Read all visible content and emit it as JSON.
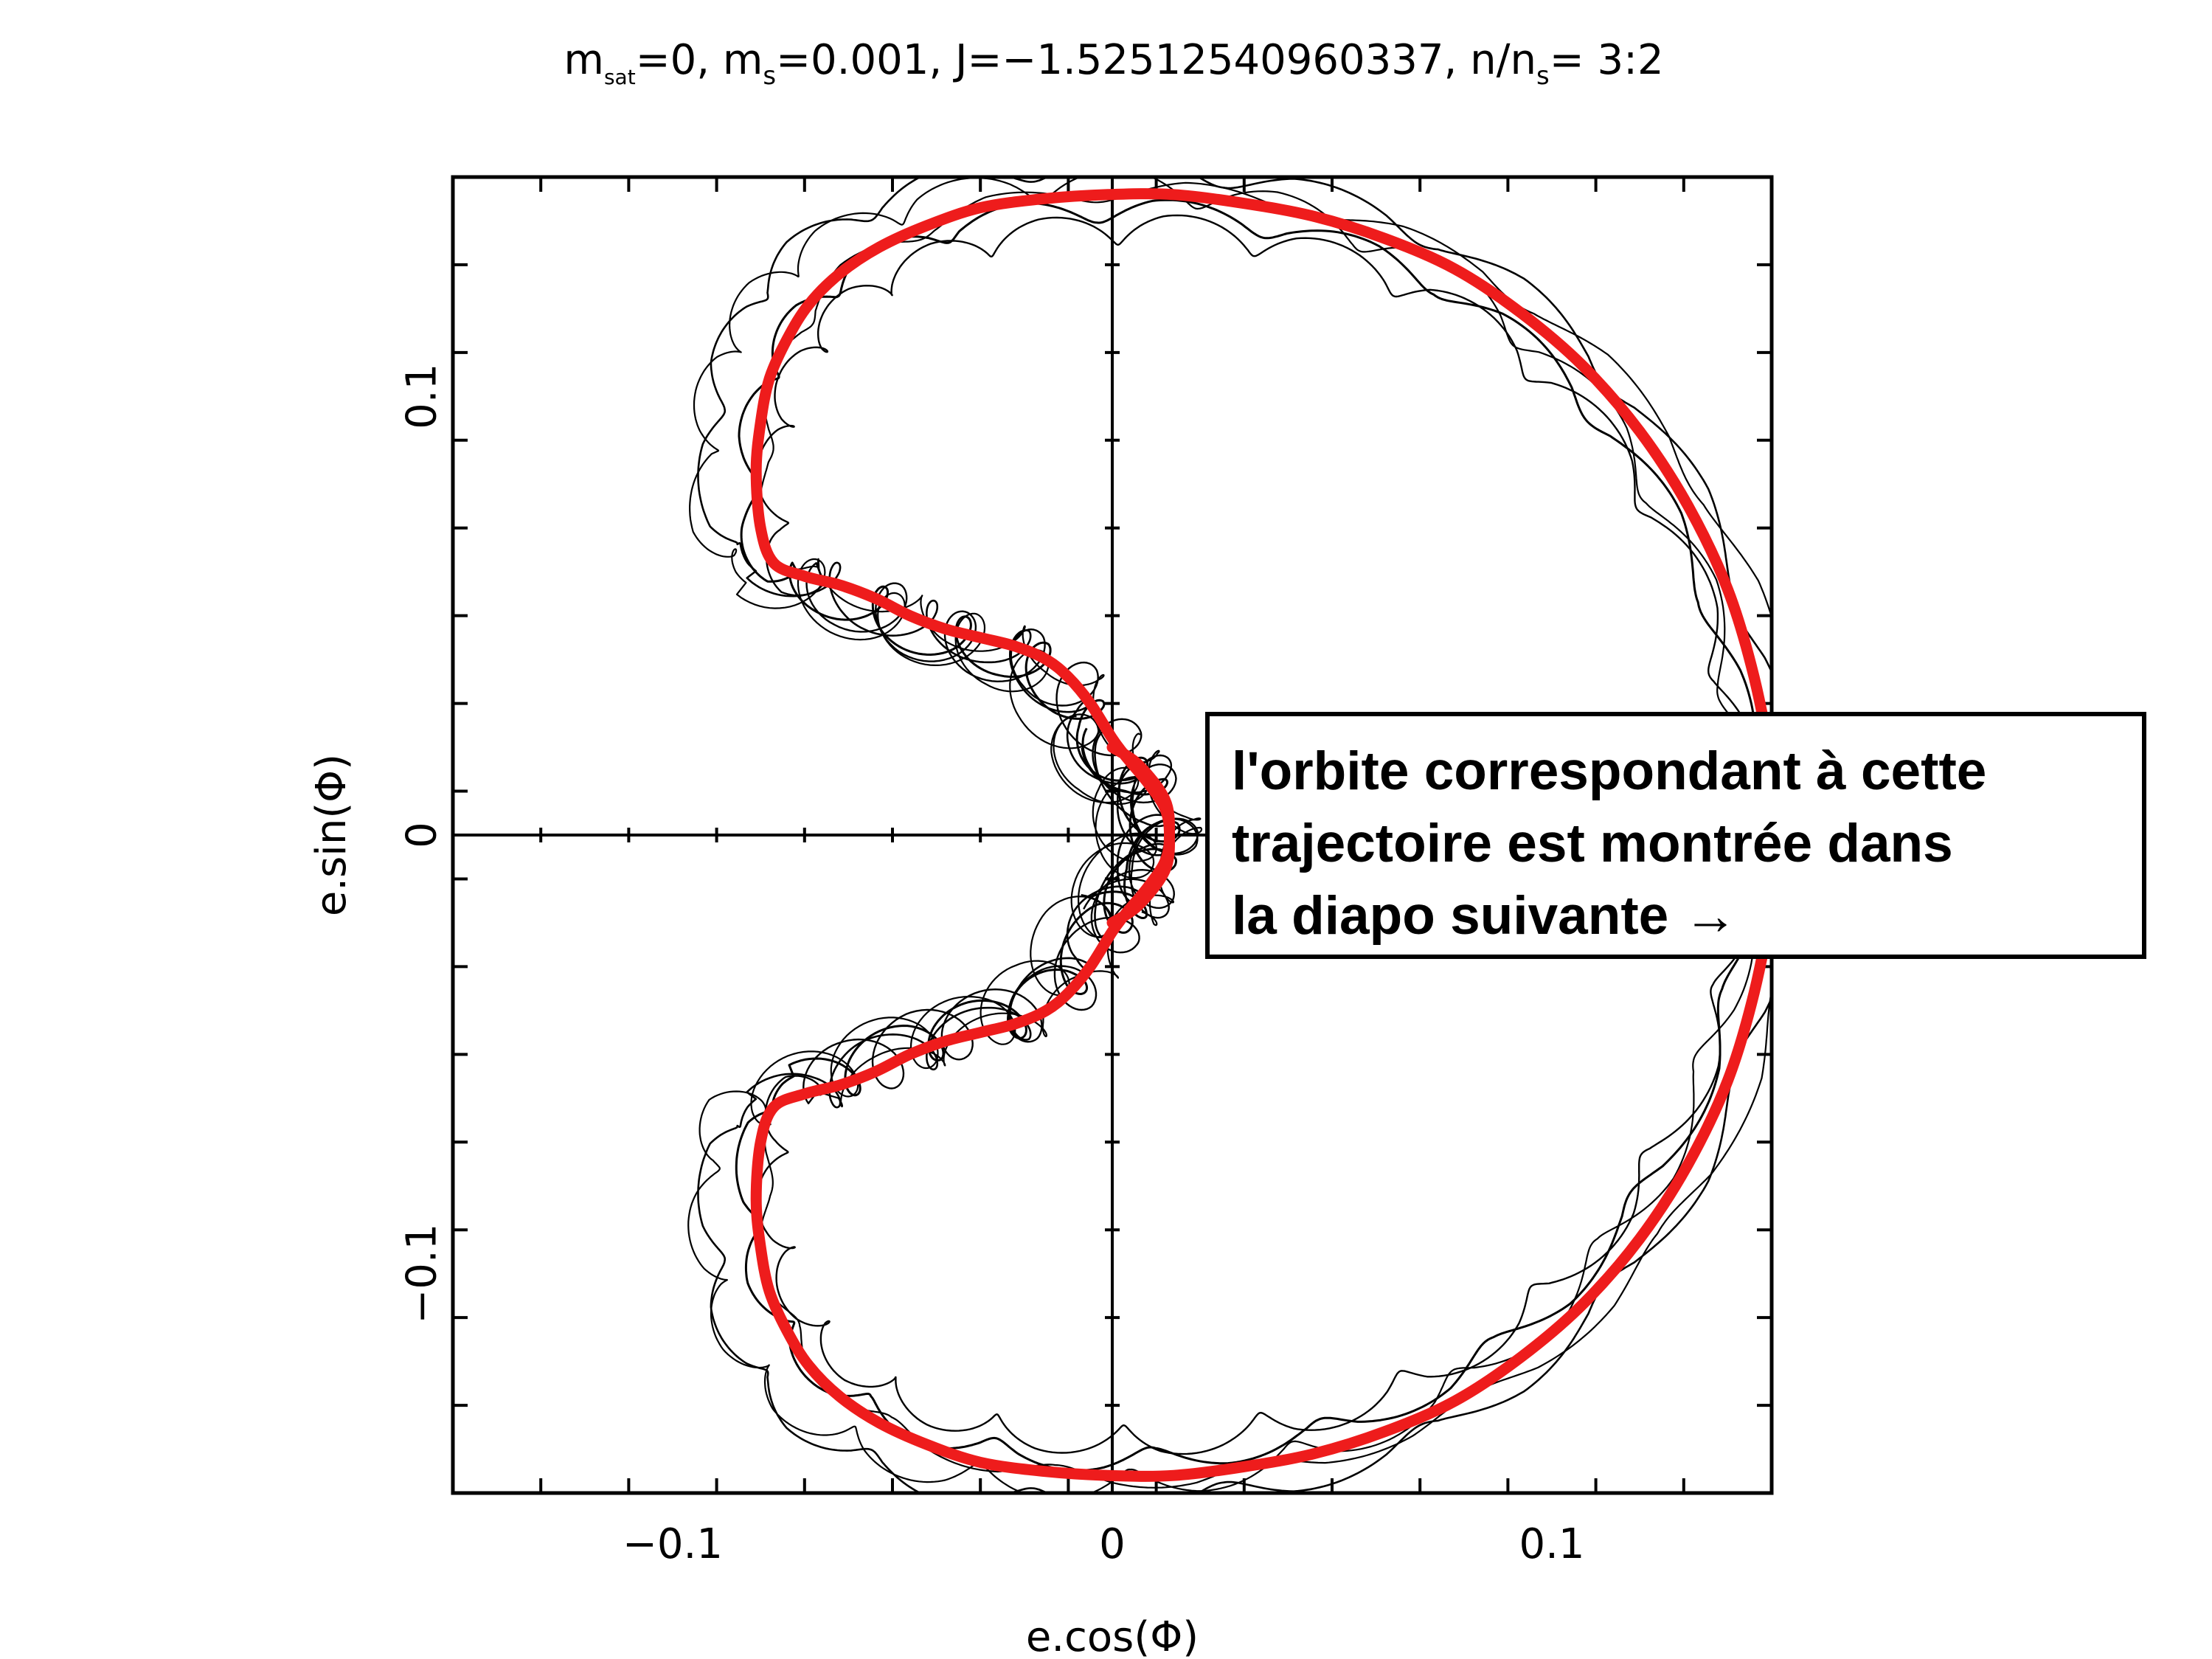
{
  "chart_data": {
    "type": "line",
    "title": {
      "m_sat_sym": "m",
      "m_sat_sub": "sat",
      "m_sat_val": "=0, ",
      "m_s_sym": "m",
      "m_s_sub": "s",
      "m_s_val": "=0.001, J=−1.52512540960337, n/n",
      "ratio_sub": "s",
      "ratio_val": "= 3:2"
    },
    "xlabel": "e.cos(Φ)",
    "ylabel": "e.sin(Φ)",
    "xlim": [
      -0.15,
      0.15
    ],
    "ylim": [
      -0.15,
      0.15
    ],
    "xticks": [
      {
        "value": -0.1,
        "label": "−0.1"
      },
      {
        "value": 0,
        "label": "0"
      },
      {
        "value": 0.1,
        "label": "0.1"
      }
    ],
    "yticks": [
      {
        "value": -0.1,
        "label": "−0.1"
      },
      {
        "value": 0,
        "label": "0"
      },
      {
        "value": 0.1,
        "label": "0.1"
      }
    ],
    "minor_tick_step": 0.02,
    "zero_lines": true,
    "grid": false,
    "series": [
      {
        "style": "thick-red-smooth",
        "color": "#ee1c1c",
        "x": [
          0.0,
          0.006,
          0.012,
          0.013,
          0.012,
          0.008,
          0.003,
          0.0,
          -0.005,
          -0.01,
          -0.015,
          -0.022,
          -0.03,
          -0.038,
          -0.046,
          -0.054,
          -0.062,
          -0.07,
          -0.077,
          -0.08,
          -0.081,
          -0.08,
          -0.078,
          -0.074,
          -0.069,
          -0.062,
          -0.053,
          -0.042,
          -0.03,
          -0.016,
          -0.001,
          0.014,
          0.03,
          0.046,
          0.062,
          0.078,
          0.093,
          0.107,
          0.12,
          0.131,
          0.14,
          0.146,
          0.15,
          0.151,
          0.15,
          0.146,
          0.14,
          0.131,
          0.12,
          0.107,
          0.093,
          0.078,
          0.062,
          0.046,
          0.03,
          0.014,
          -0.001,
          -0.016,
          -0.03,
          -0.042,
          -0.053,
          -0.062,
          -0.069,
          -0.074,
          -0.078,
          -0.08,
          -0.081,
          -0.08,
          -0.077,
          -0.07,
          -0.062,
          -0.054,
          -0.046,
          -0.038,
          -0.03,
          -0.022,
          -0.015,
          -0.01,
          -0.005,
          0.0,
          0.003,
          0.008,
          0.012,
          0.013,
          0.012,
          0.006,
          0.0
        ],
        "y": [
          0.02,
          0.016,
          0.008,
          0.0,
          -0.006,
          -0.012,
          -0.018,
          -0.022,
          -0.03,
          -0.036,
          -0.04,
          -0.043,
          -0.045,
          -0.047,
          -0.05,
          -0.054,
          -0.057,
          -0.059,
          -0.062,
          -0.07,
          -0.083,
          -0.094,
          -0.104,
          -0.113,
          -0.121,
          -0.128,
          -0.134,
          -0.139,
          -0.143,
          -0.145,
          -0.146,
          -0.146,
          -0.144,
          -0.141,
          -0.136,
          -0.129,
          -0.119,
          -0.107,
          -0.092,
          -0.075,
          -0.056,
          -0.036,
          -0.015,
          0.0,
          0.015,
          0.036,
          0.056,
          0.075,
          0.092,
          0.107,
          0.119,
          0.129,
          0.136,
          0.141,
          0.144,
          0.146,
          0.146,
          0.145,
          0.143,
          0.139,
          0.134,
          0.128,
          0.121,
          0.113,
          0.104,
          0.094,
          0.083,
          0.07,
          0.062,
          0.059,
          0.057,
          0.054,
          0.05,
          0.047,
          0.045,
          0.043,
          0.04,
          0.036,
          0.03,
          0.022,
          0.018,
          0.012,
          0.006,
          0.0,
          -0.008,
          -0.016,
          -0.02
        ]
      },
      {
        "style": "thin-black-loops",
        "color": "#000000"
      }
    ]
  },
  "callout": {
    "lines": [
      "l'orbite correspondant à cette",
      "trajectoire est montrée dans",
      "la diapo suivante →"
    ]
  }
}
